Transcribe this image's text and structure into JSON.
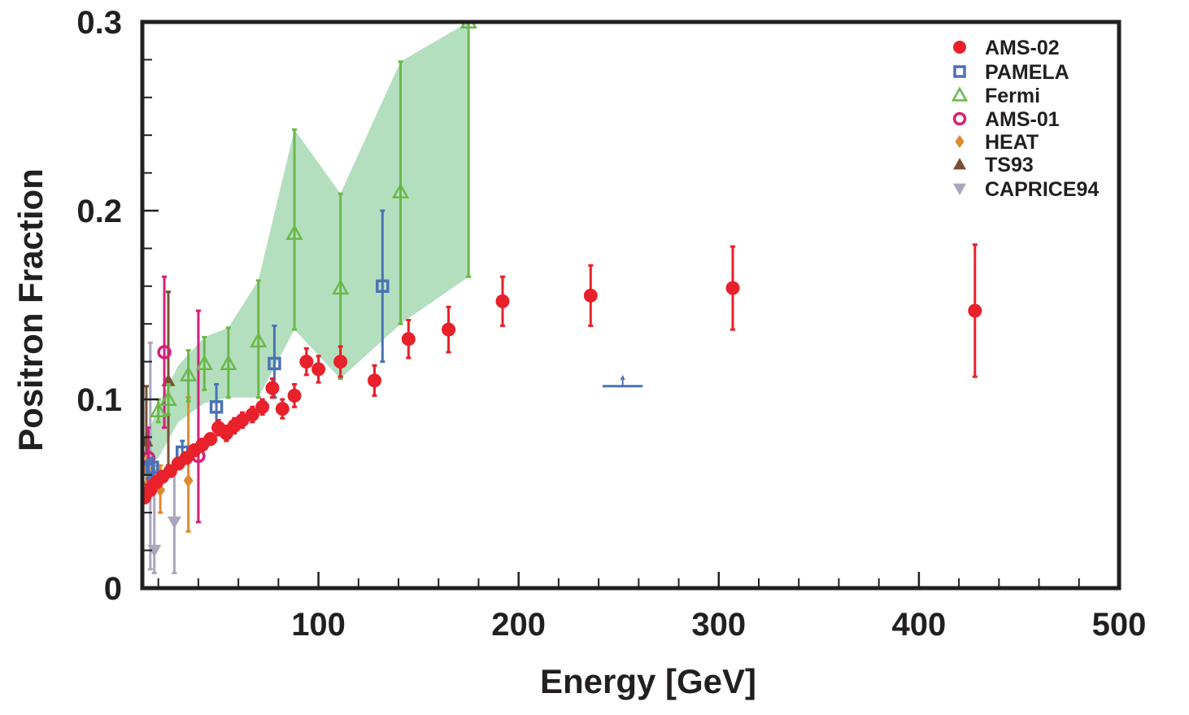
{
  "chart_data": {
    "type": "scatter",
    "xlabel": "Energy [GeV]",
    "ylabel": "Positron Fraction",
    "xlim": [
      12,
      500
    ],
    "ylim": [
      0,
      0.3
    ],
    "x_ticks": [
      100,
      200,
      300,
      400,
      500
    ],
    "x_tick_labels": [
      "100",
      "200",
      "300",
      "400",
      "500"
    ],
    "y_ticks": [
      0,
      0.1,
      0.2,
      0.3
    ],
    "y_tick_labels": [
      "0",
      "0.1",
      "0.2",
      "0.3"
    ],
    "grid": false,
    "legend_position": "top-right",
    "band": {
      "color": "#b4dfbf",
      "upper": [
        [
          15,
          0.082
        ],
        [
          20,
          0.097
        ],
        [
          30,
          0.118
        ],
        [
          43,
          0.133
        ],
        [
          55,
          0.138
        ],
        [
          70,
          0.163
        ],
        [
          88,
          0.243
        ],
        [
          111,
          0.209
        ],
        [
          141,
          0.279
        ],
        [
          175,
          0.3
        ],
        [
          175,
          0.165
        ]
      ],
      "lower": [
        [
          175,
          0.165
        ],
        [
          141,
          0.14
        ],
        [
          111,
          0.111
        ],
        [
          88,
          0.137
        ],
        [
          70,
          0.101
        ],
        [
          55,
          0.101
        ],
        [
          43,
          0.098
        ],
        [
          30,
          0.088
        ],
        [
          20,
          0.069
        ],
        [
          15,
          0.065
        ]
      ]
    },
    "series": [
      {
        "name": "AMS-02",
        "color": "#e8212a",
        "marker": "circle-filled",
        "points": [
          {
            "x": 13,
            "y": 0.048,
            "lo": 0.045,
            "hi": 0.051
          },
          {
            "x": 16,
            "y": 0.052,
            "lo": 0.049,
            "hi": 0.055
          },
          {
            "x": 19,
            "y": 0.056,
            "lo": 0.053,
            "hi": 0.059
          },
          {
            "x": 22,
            "y": 0.059,
            "lo": 0.056,
            "hi": 0.062
          },
          {
            "x": 26,
            "y": 0.062,
            "lo": 0.059,
            "hi": 0.065
          },
          {
            "x": 30,
            "y": 0.066,
            "lo": 0.063,
            "hi": 0.069
          },
          {
            "x": 34,
            "y": 0.069,
            "lo": 0.066,
            "hi": 0.072
          },
          {
            "x": 38,
            "y": 0.073,
            "lo": 0.07,
            "hi": 0.076
          },
          {
            "x": 42,
            "y": 0.076,
            "lo": 0.073,
            "hi": 0.079
          },
          {
            "x": 46,
            "y": 0.079,
            "lo": 0.076,
            "hi": 0.082
          },
          {
            "x": 50,
            "y": 0.085,
            "lo": 0.081,
            "hi": 0.089
          },
          {
            "x": 54,
            "y": 0.082,
            "lo": 0.078,
            "hi": 0.086
          },
          {
            "x": 58,
            "y": 0.086,
            "lo": 0.082,
            "hi": 0.09
          },
          {
            "x": 62,
            "y": 0.089,
            "lo": 0.085,
            "hi": 0.093
          },
          {
            "x": 67,
            "y": 0.092,
            "lo": 0.088,
            "hi": 0.096
          },
          {
            "x": 72,
            "y": 0.096,
            "lo": 0.092,
            "hi": 0.1
          },
          {
            "x": 77,
            "y": 0.106,
            "lo": 0.101,
            "hi": 0.111
          },
          {
            "x": 82,
            "y": 0.095,
            "lo": 0.09,
            "hi": 0.1
          },
          {
            "x": 88,
            "y": 0.102,
            "lo": 0.096,
            "hi": 0.108
          },
          {
            "x": 94,
            "y": 0.12,
            "lo": 0.113,
            "hi": 0.127
          },
          {
            "x": 100,
            "y": 0.116,
            "lo": 0.109,
            "hi": 0.123
          },
          {
            "x": 111,
            "y": 0.12,
            "lo": 0.112,
            "hi": 0.128
          },
          {
            "x": 128,
            "y": 0.11,
            "lo": 0.102,
            "hi": 0.118
          },
          {
            "x": 145,
            "y": 0.132,
            "lo": 0.122,
            "hi": 0.142
          },
          {
            "x": 165,
            "y": 0.137,
            "lo": 0.125,
            "hi": 0.149
          },
          {
            "x": 192,
            "y": 0.152,
            "lo": 0.139,
            "hi": 0.165
          },
          {
            "x": 236,
            "y": 0.155,
            "lo": 0.139,
            "hi": 0.171
          },
          {
            "x": 307,
            "y": 0.159,
            "lo": 0.137,
            "hi": 0.181
          },
          {
            "x": 428,
            "y": 0.147,
            "lo": 0.112,
            "hi": 0.182
          }
        ]
      },
      {
        "name": "PAMELA",
        "color": "#4a73b5",
        "marker": "square-open",
        "points": [
          {
            "x": 15,
            "y": 0.063,
            "lo": 0.058,
            "hi": 0.068
          },
          {
            "x": 17,
            "y": 0.064,
            "lo": 0.059,
            "hi": 0.069
          },
          {
            "x": 32,
            "y": 0.072,
            "lo": 0.066,
            "hi": 0.078
          },
          {
            "x": 49,
            "y": 0.096,
            "lo": 0.086,
            "hi": 0.108
          },
          {
            "x": 78,
            "y": 0.119,
            "lo": 0.101,
            "hi": 0.139
          },
          {
            "x": 132,
            "y": 0.16,
            "lo": 0.12,
            "hi": 0.2
          }
        ]
      },
      {
        "name": "Fermi",
        "color": "#6bb84a",
        "marker": "triangle-up-open",
        "points": [
          {
            "x": 20,
            "y": 0.094,
            "lo": 0.088,
            "hi": 0.1
          },
          {
            "x": 25,
            "y": 0.1,
            "lo": 0.092,
            "hi": 0.108
          },
          {
            "x": 35,
            "y": 0.113,
            "lo": 0.099,
            "hi": 0.126
          },
          {
            "x": 43,
            "y": 0.119,
            "lo": 0.105,
            "hi": 0.133
          },
          {
            "x": 55,
            "y": 0.119,
            "lo": 0.101,
            "hi": 0.138
          },
          {
            "x": 70,
            "y": 0.131,
            "lo": 0.101,
            "hi": 0.163
          },
          {
            "x": 88,
            "y": 0.188,
            "lo": 0.137,
            "hi": 0.243
          },
          {
            "x": 111,
            "y": 0.159,
            "lo": 0.111,
            "hi": 0.209
          },
          {
            "x": 141,
            "y": 0.21,
            "lo": 0.14,
            "hi": 0.279
          },
          {
            "x": 175,
            "y": 0.3,
            "lo": 0.165,
            "hi": 0.3
          }
        ]
      },
      {
        "name": "AMS-01",
        "color": "#d6207a",
        "marker": "circle-open",
        "points": [
          {
            "x": 15,
            "y": 0.069,
            "lo": 0.055,
            "hi": 0.085
          },
          {
            "x": 23,
            "y": 0.125,
            "lo": 0.085,
            "hi": 0.165
          },
          {
            "x": 40,
            "y": 0.07,
            "lo": 0.035,
            "hi": 0.147
          }
        ]
      },
      {
        "name": "HEAT",
        "color": "#e08a2e",
        "marker": "diamond-filled",
        "points": [
          {
            "x": 14,
            "y": 0.063,
            "lo": 0.056,
            "hi": 0.07
          },
          {
            "x": 21,
            "y": 0.052,
            "lo": 0.04,
            "hi": 0.065
          },
          {
            "x": 35,
            "y": 0.057,
            "lo": 0.03,
            "hi": 0.101
          }
        ]
      },
      {
        "name": "TS93",
        "color": "#7a5034",
        "marker": "triangle-up-filled",
        "points": [
          {
            "x": 14,
            "y": 0.078,
            "lo": 0.055,
            "hi": 0.107
          },
          {
            "x": 25,
            "y": 0.11,
            "lo": 0.065,
            "hi": 0.157
          }
        ]
      },
      {
        "name": "CAPRICE94",
        "color": "#a9a6bd",
        "marker": "triangle-down-filled",
        "points": [
          {
            "x": 16,
            "y": 0.06,
            "lo": 0.01,
            "hi": 0.13
          },
          {
            "x": 18,
            "y": 0.02,
            "lo": 0.008,
            "hi": 0.065
          },
          {
            "x": 28,
            "y": 0.035,
            "lo": 0.008,
            "hi": 0.065
          }
        ]
      }
    ],
    "annotation_marker": {
      "x_from": 242,
      "x_to": 262,
      "y": 0.107,
      "color": "#4a73b5"
    }
  }
}
